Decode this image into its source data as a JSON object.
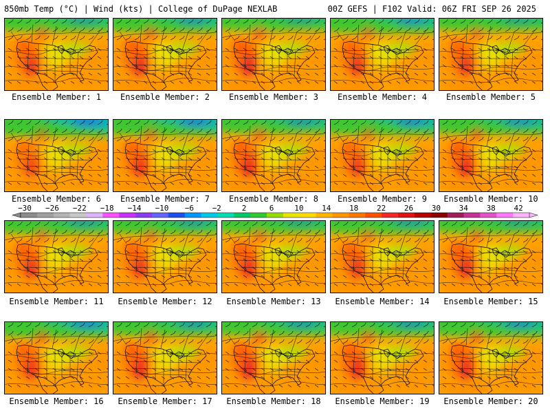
{
  "header": {
    "left": "850mb Temp (°C) | Wind (kts) | College of DuPage NEXLAB",
    "right": "00Z GEFS | F102 Valid: 06Z FRI SEP 26 2025"
  },
  "members": [
    {
      "label": "Ensemble Member: 1",
      "heat": 0.8,
      "cool": 0.5
    },
    {
      "label": "Ensemble Member: 2",
      "heat": 0.9,
      "cool": 0.6
    },
    {
      "label": "Ensemble Member: 3",
      "heat": 1.0,
      "cool": 0.4
    },
    {
      "label": "Ensemble Member: 4",
      "heat": 0.8,
      "cool": 0.7
    },
    {
      "label": "Ensemble Member: 5",
      "heat": 0.8,
      "cool": 0.4
    },
    {
      "label": "Ensemble Member: 6",
      "heat": 0.6,
      "cool": 1.0
    },
    {
      "label": "Ensemble Member: 7",
      "heat": 0.8,
      "cool": 0.9
    },
    {
      "label": "Ensemble Member: 8",
      "heat": 0.9,
      "cool": 0.6
    },
    {
      "label": "Ensemble Member: 9",
      "heat": 0.7,
      "cool": 0.8
    },
    {
      "label": "Ensemble Member: 10",
      "heat": 0.9,
      "cool": 0.7
    },
    {
      "label": "Ensemble Member: 11",
      "heat": 0.8,
      "cool": 0.5
    },
    {
      "label": "Ensemble Member: 12",
      "heat": 0.8,
      "cool": 0.5
    },
    {
      "label": "Ensemble Member: 13",
      "heat": 0.9,
      "cool": 0.4
    },
    {
      "label": "Ensemble Member: 14",
      "heat": 0.8,
      "cool": 0.5
    },
    {
      "label": "Ensemble Member: 15",
      "heat": 0.9,
      "cool": 0.4
    },
    {
      "label": "Ensemble Member: 16",
      "heat": 0.8,
      "cool": 0.8
    },
    {
      "label": "Ensemble Member: 17",
      "heat": 0.9,
      "cool": 0.6
    },
    {
      "label": "Ensemble Member: 18",
      "heat": 1.0,
      "cool": 0.6
    },
    {
      "label": "Ensemble Member: 19",
      "heat": 0.9,
      "cool": 0.6
    },
    {
      "label": "Ensemble Member: 20",
      "heat": 0.9,
      "cool": 0.7
    }
  ],
  "colorbar": {
    "labels": [
      "−30",
      "−26",
      "−22",
      "−18",
      "−14",
      "−10",
      "−6",
      "−2",
      "2",
      "6",
      "10",
      "14",
      "18",
      "22",
      "26",
      "30",
      "34",
      "38",
      "42"
    ],
    "colors": [
      "#8c8c8c",
      "#a0a0a0",
      "#b4b4b4",
      "#c8c8c8",
      "#dcb4ff",
      "#ff50ff",
      "#c832ff",
      "#8c3cf0",
      "#6464ff",
      "#1e50f0",
      "#0096ff",
      "#00c8e6",
      "#00dcb4",
      "#00c864",
      "#32c832",
      "#96dc00",
      "#e6e600",
      "#ffdc00",
      "#ffb400",
      "#ff9600",
      "#ff7800",
      "#ff5000",
      "#f02828",
      "#dc1414",
      "#b40000",
      "#8c0000",
      "#a01e5a",
      "#c83296",
      "#e650c8",
      "#ff78ff",
      "#ffb4ff"
    ]
  },
  "colors": {
    "background": "#ffffff",
    "outline": "#000000",
    "contour": "#000000"
  }
}
